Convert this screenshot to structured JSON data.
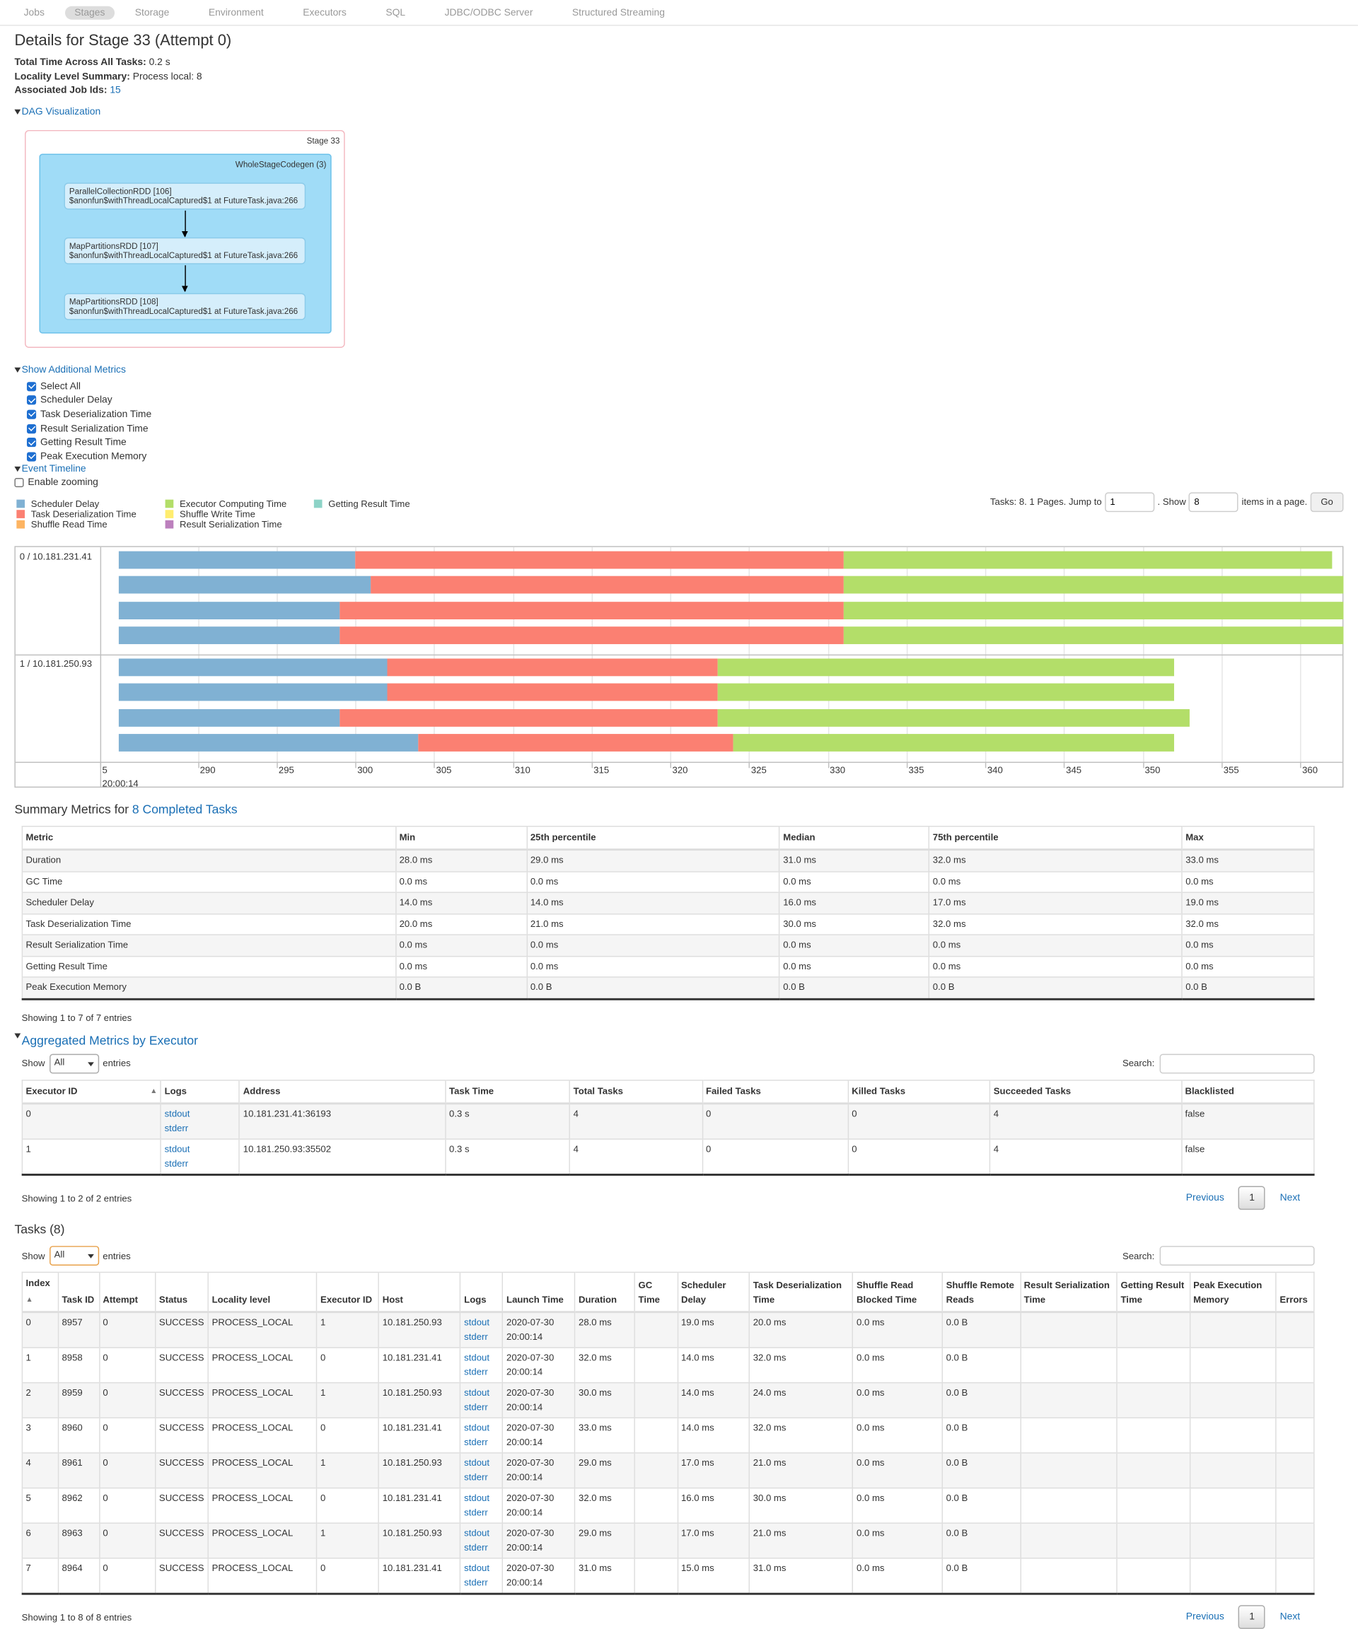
{
  "nav": {
    "tabs": [
      "Jobs",
      "Stages",
      "Storage",
      "Environment",
      "Executors",
      "SQL",
      "JDBC/ODBC Server",
      "Structured Streaming"
    ],
    "active": "Stages"
  },
  "page": {
    "title": "Details for Stage 33 (Attempt 0)",
    "total_time_label": "Total Time Across All Tasks:",
    "total_time_value": "0.2 s",
    "locality_label": "Locality Level Summary:",
    "locality_value": "Process local: 8",
    "job_ids_label": "Associated Job Ids:",
    "job_ids_value": "15"
  },
  "dag": {
    "toggle": "DAG Visualization",
    "stage_label": "Stage 33",
    "cluster_label": "WholeStageCodegen (3)",
    "nodes": [
      {
        "name": "ParallelCollectionRDD [106]",
        "callsite": "$anonfun$withThreadLocalCaptured$1 at FutureTask.java:266"
      },
      {
        "name": "MapPartitionsRDD [107]",
        "callsite": "$anonfun$withThreadLocalCaptured$1 at FutureTask.java:266"
      },
      {
        "name": "MapPartitionsRDD [108]",
        "callsite": "$anonfun$withThreadLocalCaptured$1 at FutureTask.java:266"
      }
    ]
  },
  "metrics_toggle": "Show Additional Metrics",
  "metrics_checks": [
    "Select All",
    "Scheduler Delay",
    "Task Deserialization Time",
    "Result Serialization Time",
    "Getting Result Time",
    "Peak Execution Memory"
  ],
  "timeline": {
    "toggle": "Event Timeline",
    "zoom_label": "Enable zooming",
    "legend": [
      {
        "label": "Scheduler Delay",
        "color": "#80b1d3"
      },
      {
        "label": "Task Deserialization Time",
        "color": "#fb8072"
      },
      {
        "label": "Shuffle Read Time",
        "color": "#fdb462"
      },
      {
        "label": "Executor Computing Time",
        "color": "#b3de69"
      },
      {
        "label": "Shuffle Write Time",
        "color": "#ffed6f"
      },
      {
        "label": "Result Serialization Time",
        "color": "#bc80bd"
      },
      {
        "label": "Getting Result Time",
        "color": "#8dd3c7"
      }
    ],
    "pager_prefix": "Tasks: 8. 1 Pages. Jump to",
    "pager_jump": "1",
    "pager_show": ". Show",
    "pager_items": "8",
    "pager_suffix": "items in a page.",
    "go": "Go",
    "groups": [
      "0 / 10.181.231.41",
      "1 / 10.181.250.93"
    ],
    "tick_labels": [
      "5",
      "290",
      "295",
      "300",
      "305",
      "310",
      "315",
      "320",
      "325",
      "330",
      "335",
      "340",
      "345",
      "350",
      "355",
      "360"
    ],
    "date_label": "20:00:14",
    "axis_start_ms": 285,
    "tasks": [
      {
        "group": 0,
        "start": 285,
        "sched": 15,
        "deser": 31,
        "compute": 31
      },
      {
        "group": 0,
        "start": 285,
        "sched": 16,
        "deser": 30,
        "compute": 32
      },
      {
        "group": 0,
        "start": 285,
        "sched": 14,
        "deser": 32,
        "compute": 33
      },
      {
        "group": 0,
        "start": 285,
        "sched": 14,
        "deser": 32,
        "compute": 32
      },
      {
        "group": 1,
        "start": 285,
        "sched": 17,
        "deser": 21,
        "compute": 29
      },
      {
        "group": 1,
        "start": 285,
        "sched": 17,
        "deser": 21,
        "compute": 29
      },
      {
        "group": 1,
        "start": 285,
        "sched": 14,
        "deser": 24,
        "compute": 30
      },
      {
        "group": 1,
        "start": 285,
        "sched": 19,
        "deser": 20,
        "compute": 28
      }
    ]
  },
  "summary": {
    "title_prefix": "Summary Metrics for",
    "title_link": "8 Completed Tasks",
    "headers": [
      "Metric",
      "Min",
      "25th percentile",
      "Median",
      "75th percentile",
      "Max"
    ],
    "rows": [
      [
        "Duration",
        "28.0 ms",
        "29.0 ms",
        "31.0 ms",
        "32.0 ms",
        "33.0 ms"
      ],
      [
        "GC Time",
        "0.0 ms",
        "0.0 ms",
        "0.0 ms",
        "0.0 ms",
        "0.0 ms"
      ],
      [
        "Scheduler Delay",
        "14.0 ms",
        "14.0 ms",
        "16.0 ms",
        "17.0 ms",
        "19.0 ms"
      ],
      [
        "Task Deserialization Time",
        "20.0 ms",
        "21.0 ms",
        "30.0 ms",
        "32.0 ms",
        "32.0 ms"
      ],
      [
        "Result Serialization Time",
        "0.0 ms",
        "0.0 ms",
        "0.0 ms",
        "0.0 ms",
        "0.0 ms"
      ],
      [
        "Getting Result Time",
        "0.0 ms",
        "0.0 ms",
        "0.0 ms",
        "0.0 ms",
        "0.0 ms"
      ],
      [
        "Peak Execution Memory",
        "0.0 B",
        "0.0 B",
        "0.0 B",
        "0.0 B",
        "0.0 B"
      ]
    ],
    "info": "Showing 1 to 7 of 7 entries"
  },
  "aggregated": {
    "title": "Aggregated Metrics by Executor",
    "show": "Show",
    "show_value": "All",
    "entries": "entries",
    "search": "Search:",
    "headers": [
      "Executor ID",
      "Logs",
      "Address",
      "Task Time",
      "Total Tasks",
      "Failed Tasks",
      "Killed Tasks",
      "Succeeded Tasks",
      "Blacklisted"
    ],
    "rows": [
      {
        "id": "0",
        "address": "10.181.231.41:36193",
        "task_time": "0.3 s",
        "total": "4",
        "failed": "0",
        "killed": "0",
        "succeeded": "4",
        "blacklisted": "false"
      },
      {
        "id": "1",
        "address": "10.181.250.93:35502",
        "task_time": "0.3 s",
        "total": "4",
        "failed": "0",
        "killed": "0",
        "succeeded": "4",
        "blacklisted": "false"
      }
    ],
    "info": "Showing 1 to 2 of 2 entries",
    "previous": "Previous",
    "page": "1",
    "next": "Next"
  },
  "logs": {
    "stdout": "stdout",
    "stderr": "stderr"
  },
  "tasks": {
    "title": "Tasks (8)",
    "show": "Show",
    "show_value": "All",
    "entries": "entries",
    "search": "Search:",
    "headers": [
      "Index",
      "Task ID",
      "Attempt",
      "Status",
      "Locality level",
      "Executor ID",
      "Host",
      "Logs",
      "Launch Time",
      "Duration",
      "GC Time",
      "Scheduler Delay",
      "Task Deserialization Time",
      "Shuffle Read Blocked Time",
      "Shuffle Remote Reads",
      "Result Serialization Time",
      "Getting Result Time",
      "Peak Execution Memory",
      "Errors"
    ],
    "rows": [
      {
        "index": "0",
        "task_id": "8957",
        "attempt": "0",
        "status": "SUCCESS",
        "locality": "PROCESS_LOCAL",
        "executor": "1",
        "host": "10.181.250.93",
        "launch_date": "2020-07-30",
        "launch_time": "20:00:14",
        "duration": "28.0 ms",
        "gc": "",
        "sched": "19.0 ms",
        "deser": "20.0 ms",
        "shuffle_blocked": "0.0 ms",
        "shuffle_remote": "0.0 B"
      },
      {
        "index": "1",
        "task_id": "8958",
        "attempt": "0",
        "status": "SUCCESS",
        "locality": "PROCESS_LOCAL",
        "executor": "0",
        "host": "10.181.231.41",
        "launch_date": "2020-07-30",
        "launch_time": "20:00:14",
        "duration": "32.0 ms",
        "gc": "",
        "sched": "14.0 ms",
        "deser": "32.0 ms",
        "shuffle_blocked": "0.0 ms",
        "shuffle_remote": "0.0 B"
      },
      {
        "index": "2",
        "task_id": "8959",
        "attempt": "0",
        "status": "SUCCESS",
        "locality": "PROCESS_LOCAL",
        "executor": "1",
        "host": "10.181.250.93",
        "launch_date": "2020-07-30",
        "launch_time": "20:00:14",
        "duration": "30.0 ms",
        "gc": "",
        "sched": "14.0 ms",
        "deser": "24.0 ms",
        "shuffle_blocked": "0.0 ms",
        "shuffle_remote": "0.0 B"
      },
      {
        "index": "3",
        "task_id": "8960",
        "attempt": "0",
        "status": "SUCCESS",
        "locality": "PROCESS_LOCAL",
        "executor": "0",
        "host": "10.181.231.41",
        "launch_date": "2020-07-30",
        "launch_time": "20:00:14",
        "duration": "33.0 ms",
        "gc": "",
        "sched": "14.0 ms",
        "deser": "32.0 ms",
        "shuffle_blocked": "0.0 ms",
        "shuffle_remote": "0.0 B"
      },
      {
        "index": "4",
        "task_id": "8961",
        "attempt": "0",
        "status": "SUCCESS",
        "locality": "PROCESS_LOCAL",
        "executor": "1",
        "host": "10.181.250.93",
        "launch_date": "2020-07-30",
        "launch_time": "20:00:14",
        "duration": "29.0 ms",
        "gc": "",
        "sched": "17.0 ms",
        "deser": "21.0 ms",
        "shuffle_blocked": "0.0 ms",
        "shuffle_remote": "0.0 B"
      },
      {
        "index": "5",
        "task_id": "8962",
        "attempt": "0",
        "status": "SUCCESS",
        "locality": "PROCESS_LOCAL",
        "executor": "0",
        "host": "10.181.231.41",
        "launch_date": "2020-07-30",
        "launch_time": "20:00:14",
        "duration": "32.0 ms",
        "gc": "",
        "sched": "16.0 ms",
        "deser": "30.0 ms",
        "shuffle_blocked": "0.0 ms",
        "shuffle_remote": "0.0 B"
      },
      {
        "index": "6",
        "task_id": "8963",
        "attempt": "0",
        "status": "SUCCESS",
        "locality": "PROCESS_LOCAL",
        "executor": "1",
        "host": "10.181.250.93",
        "launch_date": "2020-07-30",
        "launch_time": "20:00:14",
        "duration": "29.0 ms",
        "gc": "",
        "sched": "17.0 ms",
        "deser": "21.0 ms",
        "shuffle_blocked": "0.0 ms",
        "shuffle_remote": "0.0 B"
      },
      {
        "index": "7",
        "task_id": "8964",
        "attempt": "0",
        "status": "SUCCESS",
        "locality": "PROCESS_LOCAL",
        "executor": "0",
        "host": "10.181.231.41",
        "launch_date": "2020-07-30",
        "launch_time": "20:00:14",
        "duration": "31.0 ms",
        "gc": "",
        "sched": "15.0 ms",
        "deser": "31.0 ms",
        "shuffle_blocked": "0.0 ms",
        "shuffle_remote": "0.0 B"
      }
    ],
    "info": "Showing 1 to 8 of 8 entries",
    "previous": "Previous",
    "page": "1",
    "next": "Next"
  }
}
